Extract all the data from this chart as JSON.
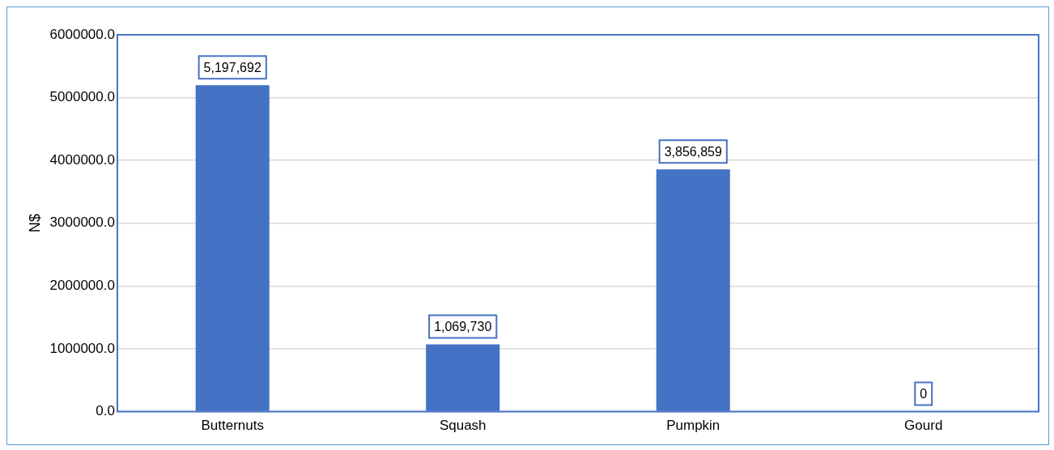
{
  "chart_data": {
    "type": "bar",
    "ylabel": "N$",
    "categories": [
      "Butternuts",
      "Squash",
      "Pumpkin",
      "Gourd"
    ],
    "values": [
      5197692,
      1069730,
      3856859,
      0
    ],
    "color": "#4472c4",
    "value_labels": [
      "5,197,692",
      "1,069,730",
      "3,856,859",
      "0"
    ],
    "ylim": [
      0,
      6000000
    ],
    "yticks": [
      {
        "value": 0,
        "label": "0.0"
      },
      {
        "value": 1000000,
        "label": "1000000.0"
      },
      {
        "value": 2000000,
        "label": "2000000.0"
      },
      {
        "value": 3000000,
        "label": "3000000.0"
      },
      {
        "value": 4000000,
        "label": "4000000.0"
      },
      {
        "value": 5000000,
        "label": "5000000.0"
      },
      {
        "value": 6000000,
        "label": "6000000.0"
      }
    ],
    "grid": "y",
    "legend": false
  }
}
